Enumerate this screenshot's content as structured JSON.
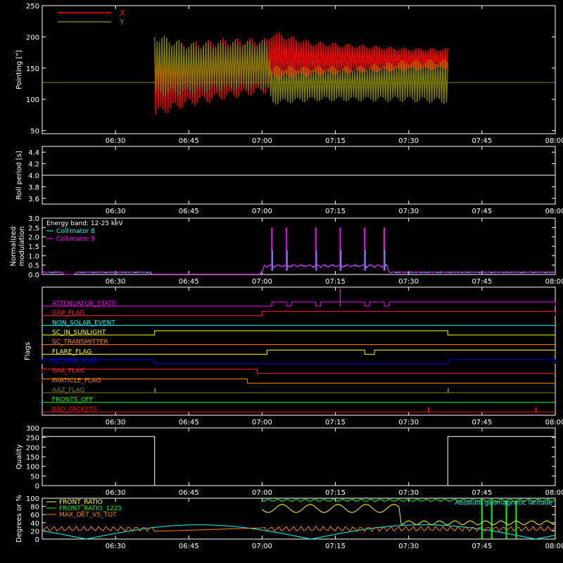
{
  "time_axis": {
    "ticks": [
      "06:30",
      "06:45",
      "07:00",
      "07:15",
      "07:30",
      "07:45",
      "08:00"
    ],
    "range": [
      "06:15",
      "08:00"
    ]
  },
  "chart_data": [
    {
      "id": "pointing",
      "type": "area",
      "ylabel": "Pointing [\"]",
      "ylim": [
        45,
        250
      ],
      "yticks": [
        50,
        100,
        150,
        200,
        250
      ],
      "legend_position": "top-left",
      "series": [
        {
          "name": "X",
          "color": "#ff0000",
          "x": [
            "06:38",
            "06:45",
            "06:52",
            "07:01",
            "07:02",
            "07:10",
            "07:20",
            "07:30",
            "07:38"
          ],
          "upper": [
            178,
            185,
            192,
            193,
            205,
            190,
            185,
            180,
            180
          ],
          "lower": [
            78,
            95,
            105,
            115,
            135,
            140,
            145,
            148,
            150
          ]
        },
        {
          "name": "Y",
          "color": "#808000",
          "x": [
            "06:38",
            "06:45",
            "06:52",
            "07:01",
            "07:02",
            "07:10",
            "07:20",
            "07:30",
            "07:38"
          ],
          "upper": [
            200,
            185,
            188,
            190,
            150,
            150,
            150,
            160,
            160
          ],
          "lower": [
            110,
            112,
            118,
            120,
            95,
            100,
            100,
            100,
            97
          ]
        }
      ],
      "reference_line": 127
    },
    {
      "id": "roll",
      "type": "line",
      "ylabel": "Roll period [s]",
      "ylim": [
        3.5,
        4.5
      ],
      "yticks": [
        "3.6",
        "3.8",
        "4.0",
        "4.2",
        "4.4"
      ],
      "series": [
        {
          "color": "#ffffff",
          "x": [
            "06:15",
            "08:00"
          ],
          "y": [
            4.0,
            4.0
          ]
        }
      ]
    },
    {
      "id": "modulation",
      "type": "line",
      "ylabel": "Normalized modulation",
      "ylim": [
        0,
        3.0
      ],
      "yticks": [
        "0.0",
        "0.5",
        "1.0",
        "1.5",
        "2.0",
        "2.5",
        "3.0"
      ],
      "legend_position": "top-left",
      "legend": [
        "Energy band: 12-25 keV",
        "Collimator 8",
        "Collimator 9"
      ],
      "legend_colors": [
        "#ffffff",
        "#00ffff",
        "#ff00ff"
      ],
      "spike_times": [
        "07:02",
        "07:05",
        "07:11",
        "07:16",
        "07:21",
        "07:25"
      ],
      "spike_values": [
        2.5,
        2.5,
        2.5,
        2.5,
        2.5,
        2.5
      ]
    },
    {
      "id": "flags",
      "type": "line",
      "ylabel": "Flags",
      "flags": [
        {
          "name": "ATTENUATOR_STATE",
          "color": "#ff00ff",
          "on": [
            [
              "07:02",
              "07:05"
            ],
            [
              "07:06",
              "07:11"
            ],
            [
              "07:12",
              "07:21"
            ],
            [
              "07:22",
              "07:25"
            ],
            [
              "07:26",
              "08:00"
            ]
          ]
        },
        {
          "name": "GAP_FLAG",
          "color": "#ff2020",
          "on": [
            [
              "07:00",
              "08:00"
            ]
          ]
        },
        {
          "name": "NON_SOLAR_EVENT",
          "color": "#00ffff",
          "on": []
        },
        {
          "name": "SC_IN_SUNLIGHT",
          "color": "#ffff00",
          "on": [
            [
              "06:38",
              "07:38"
            ]
          ]
        },
        {
          "name": "SC_TRANSMITTER",
          "color": "#ff8000",
          "on": []
        },
        {
          "name": "FLARE_FLAG",
          "color": "#ffff00",
          "on": [
            [
              "07:01",
              "07:21"
            ],
            [
              "07:23",
              "08:00"
            ]
          ]
        },
        {
          "name": "ECLIPSE_FLAG",
          "color": "#0000ff",
          "on": [
            [
              "06:15",
              "06:38"
            ],
            [
              "07:38",
              "08:00"
            ]
          ]
        },
        {
          "name": "SAA_FLAG",
          "color": "#ff2020",
          "on": [
            [
              "06:15",
              "06:59"
            ]
          ]
        },
        {
          "name": "PARTICLE_FLAG",
          "color": "#ff8000",
          "on": [
            [
              "06:15",
              "06:57"
            ]
          ]
        },
        {
          "name": "AAZ_FLAG",
          "color": "#808000",
          "on": [
            [
              "06:38",
              "06:38"
            ],
            [
              "07:38",
              "07:38"
            ]
          ]
        },
        {
          "name": "FRONTS_OFF",
          "color": "#00ff00",
          "on": []
        },
        {
          "name": "BAD_PACKETS",
          "color": "#ff0000",
          "on": [
            [
              "07:34",
              "07:34"
            ],
            [
              "07:56",
              "07:56"
            ]
          ]
        }
      ]
    },
    {
      "id": "quality",
      "type": "line",
      "ylabel": "Quality",
      "ylim": [
        0,
        300
      ],
      "yticks": [
        0,
        50,
        100,
        150,
        200,
        250,
        300
      ],
      "series": [
        {
          "color": "#ffffff",
          "x": [
            "06:15",
            "06:38",
            "06:38",
            "07:38",
            "07:38",
            "08:00"
          ],
          "y": [
            255,
            255,
            0,
            0,
            255,
            255
          ]
        }
      ]
    },
    {
      "id": "ratios",
      "type": "line",
      "ylabel": "Degrees or %",
      "ylim": [
        0,
        100
      ],
      "yticks": [
        0,
        20,
        40,
        60,
        80,
        100
      ],
      "legend_position": "top-left",
      "legend": [
        "FRONT_RATIO",
        "FRONT_RATIO_1225",
        "MAX_DET_VS_TOT"
      ],
      "legend_colors": [
        "#ffff00",
        "#00ff00",
        "#ff8000"
      ],
      "annotation": "Absolute geomagnetic latitude",
      "annotation_color": "#00ffff"
    }
  ]
}
